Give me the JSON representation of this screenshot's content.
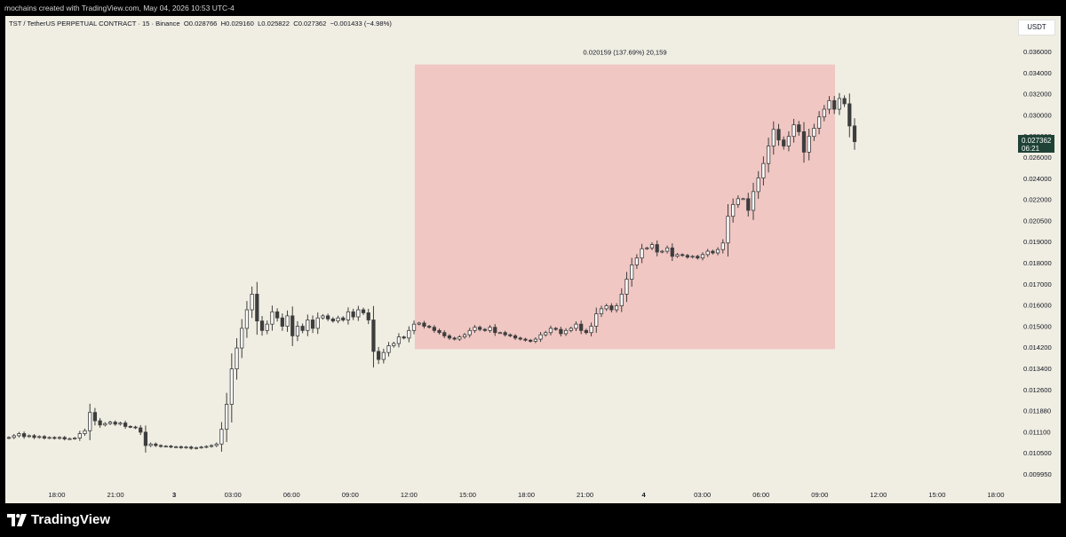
{
  "header": {
    "caption": "mochains created with TradingView.com, May 04, 2026 10:53 UTC-4"
  },
  "legend": {
    "symbol": "TST / TetherUS PERPETUAL CONTRACT · 15 · Binance",
    "o_label": "O",
    "o_value": "0.028766",
    "h_label": "H",
    "h_value": "0.029160",
    "l_label": "L",
    "l_value": "0.025822",
    "c_label": "C",
    "c_value": "0.027362",
    "change": "−0.001433 (−4.98%)"
  },
  "currency_button": "USDT",
  "price_tag": {
    "price": "0.027362",
    "countdown": "06:21"
  },
  "measure": {
    "label": "0.020159 (137.69%) 20,159",
    "from_price": 0.01455,
    "to_price": 0.0346,
    "fill": "#f0c7c3"
  },
  "footer": {
    "brand": "TradingView"
  },
  "colors": {
    "background": "#f0ede2",
    "candle_up": "#ffffff",
    "candle_down": "#3d3d3d",
    "wick": "#3d3d3d",
    "tag": "#1e4236"
  },
  "chart_data": {
    "type": "candlestick",
    "scale": "log",
    "y_ticks": [
      "0.036000",
      "0.034000",
      "0.032000",
      "0.030000",
      "0.028000",
      "0.026000",
      "0.024000",
      "0.022000",
      "0.020500",
      "0.019000",
      "0.018000",
      "0.017000",
      "0.016000",
      "0.015000",
      "0.014200",
      "0.013400",
      "0.012600",
      "0.011880",
      "0.011100",
      "0.010500",
      "0.009950"
    ],
    "x_ticks": [
      "18:00",
      "21:00",
      "3",
      "03:00",
      "06:00",
      "09:00",
      "12:00",
      "15:00",
      "18:00",
      "21:00",
      "4",
      "03:00",
      "06:00",
      "09:00",
      "12:00",
      "15:00",
      "18:00"
    ],
    "ylim": [
      0.0096,
      0.038
    ],
    "legend": "none",
    "grid": false,
    "note": "15-minute candles, read approximately from the chart",
    "closes": [
      0.01112,
      0.01118,
      0.01125,
      0.01115,
      0.01118,
      0.01112,
      0.01115,
      0.0111,
      0.01112,
      0.01109,
      0.01112,
      0.01107,
      0.01108,
      0.0111,
      0.01125,
      0.01135,
      0.012,
      0.0117,
      0.01155,
      0.0116,
      0.01165,
      0.01158,
      0.01162,
      0.0115,
      0.01148,
      0.01145,
      0.0113,
      0.01085,
      0.0109,
      0.01085,
      0.01082,
      0.01083,
      0.0108,
      0.01081,
      0.01078,
      0.0108,
      0.01076,
      0.01078,
      0.0108,
      0.01082,
      0.01085,
      0.0109,
      0.0114,
      0.0123,
      0.0137,
      0.0146,
      0.0155,
      0.0164,
      0.0172,
      0.01585,
      0.0154,
      0.0157,
      0.0163,
      0.016,
      0.0156,
      0.0161,
      0.01515,
      0.0156,
      0.0154,
      0.0159,
      0.0155,
      0.016,
      0.0161,
      0.01595,
      0.01585,
      0.016,
      0.0159,
      0.0163,
      0.01605,
      0.0164,
      0.01625,
      0.0159,
      0.01445,
      0.0141,
      0.0144,
      0.0147,
      0.0148,
      0.0151,
      0.01505,
      0.0154,
      0.0157,
      0.01575,
      0.0156,
      0.01555,
      0.0154,
      0.0153,
      0.01515,
      0.01505,
      0.015,
      0.0151,
      0.0152,
      0.0154,
      0.01555,
      0.01545,
      0.0154,
      0.01555,
      0.0153,
      0.0153,
      0.0152,
      0.01515,
      0.01505,
      0.015,
      0.01495,
      0.0149,
      0.015,
      0.0152,
      0.0153,
      0.0155,
      0.01545,
      0.01525,
      0.0154,
      0.0155,
      0.0157,
      0.0154,
      0.0153,
      0.0156,
      0.0162,
      0.01645,
      0.0166,
      0.0164,
      0.0166,
      0.0172,
      0.018,
      0.0188,
      0.0192,
      0.01975,
      0.0198,
      0.02,
      0.01955,
      0.0196,
      0.0198,
      0.0193,
      0.0194,
      0.01935,
      0.01925,
      0.0193,
      0.0192,
      0.0194,
      0.0196,
      0.0195,
      0.0197,
      0.0201,
      0.0218,
      0.0226,
      0.023,
      0.023,
      0.0222,
      0.0235,
      0.0245,
      0.0256,
      0.027,
      0.0284,
      0.0275,
      0.027,
      0.0278,
      0.0288,
      0.0282,
      0.0265,
      0.0278,
      0.0285,
      0.0295,
      0.0302,
      0.031,
      0.0302,
      0.0312,
      0.0307,
      0.0287,
      0.02736
    ]
  }
}
